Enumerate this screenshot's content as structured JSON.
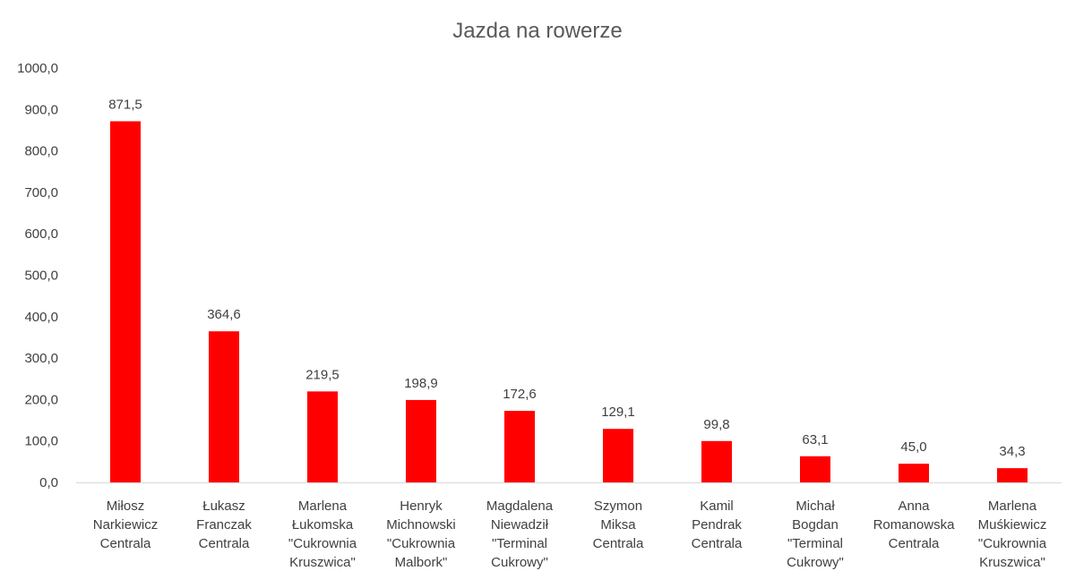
{
  "chart_data": {
    "type": "bar",
    "title": "Jazda na rowerze",
    "xlabel": "",
    "ylabel": "",
    "ylim": [
      0,
      1000
    ],
    "ytick_step": 100,
    "ytick_labels": [
      "0,0",
      "100,0",
      "200,0",
      "300,0",
      "400,0",
      "500,0",
      "600,0",
      "700,0",
      "800,0",
      "900,0",
      "1000,0"
    ],
    "grid": false,
    "bar_color": "#ff0000",
    "categories": [
      [
        "Miłosz",
        "Narkiewicz",
        "Centrala"
      ],
      [
        "Łukasz",
        "Franczak",
        "Centrala"
      ],
      [
        "Marlena",
        "Łukomska",
        "\"Cukrownia",
        "Kruszwica\""
      ],
      [
        "Henryk",
        "Michnowski",
        "\"Cukrownia",
        "Malbork\""
      ],
      [
        "Magdalena",
        "Niewadził",
        "\"Terminal",
        "Cukrowy\""
      ],
      [
        "Szymon",
        "Miksa",
        "Centrala"
      ],
      [
        "Kamil",
        "Pendrak",
        "Centrala"
      ],
      [
        "Michał",
        "Bogdan",
        "\"Terminal",
        "Cukrowy\""
      ],
      [
        "Anna",
        "Romanowska",
        "Centrala"
      ],
      [
        "Marlena",
        "Muśkiewicz",
        "\"Cukrownia",
        "Kruszwica\""
      ]
    ],
    "values": [
      871.5,
      364.6,
      219.5,
      198.9,
      172.6,
      129.1,
      99.8,
      63.1,
      45.0,
      34.3
    ],
    "value_labels": [
      "871,5",
      "364,6",
      "219,5",
      "198,9",
      "172,6",
      "129,1",
      "99,8",
      "63,1",
      "45,0",
      "34,3"
    ]
  }
}
